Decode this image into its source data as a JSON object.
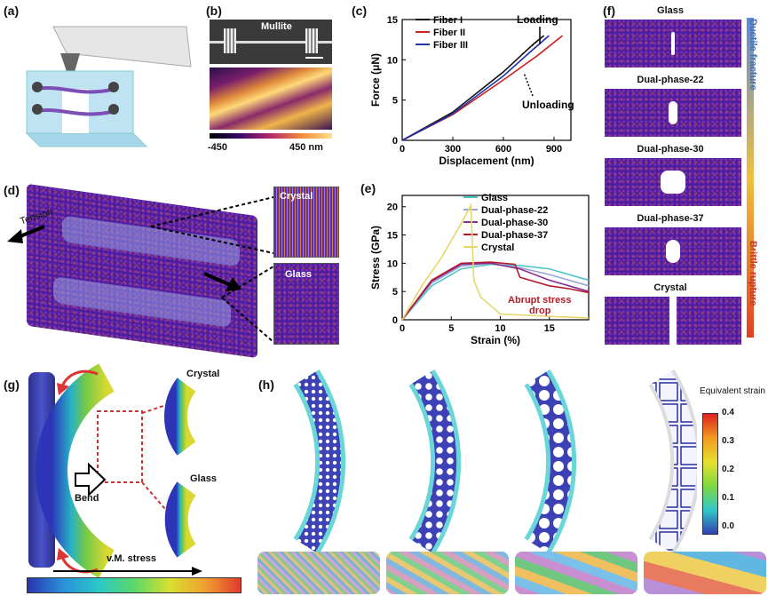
{
  "labels": {
    "a": "(a)",
    "b": "(b)",
    "c": "(c)",
    "d": "(d)",
    "e": "(e)",
    "f": "(f)",
    "g": "(g)",
    "h": "(h)"
  },
  "panel_b": {
    "sem_label": "Mullite",
    "colorbar_min": "-450",
    "colorbar_max": "450 nm"
  },
  "panel_c": {
    "chart_data": {
      "type": "line",
      "xlabel": "Displacement (nm)",
      "ylabel": "Force (μN)",
      "xlim": [
        0,
        1000
      ],
      "ylim": [
        0,
        15
      ],
      "xticks": [
        0,
        300,
        600,
        900
      ],
      "yticks": [
        0,
        5,
        10,
        15
      ],
      "series": [
        {
          "name": "Fiber I",
          "color": "#111111",
          "x": [
            0,
            300,
            600,
            780,
            840
          ],
          "y": [
            0,
            3.5,
            8.5,
            12,
            13
          ],
          "unload_x": [
            840,
            700
          ],
          "unload_y": [
            13,
            10.5
          ]
        },
        {
          "name": "Fiber II",
          "color": "#cc2222",
          "x": [
            0,
            300,
            600,
            800,
            950
          ],
          "y": [
            0,
            3.2,
            7.5,
            10.5,
            13
          ],
          "unload_x": [
            950,
            820
          ],
          "unload_y": [
            13,
            10.8
          ]
        },
        {
          "name": "Fiber III",
          "color": "#2233aa",
          "x": [
            0,
            300,
            600,
            760,
            870
          ],
          "y": [
            0,
            3.3,
            8,
            11,
            13
          ],
          "unload_x": [
            870,
            740
          ],
          "unload_y": [
            13,
            10.6
          ]
        }
      ],
      "annotations": [
        "Loading",
        "Unloading"
      ]
    }
  },
  "panel_d": {
    "tension": "Tension",
    "crystal": "Crystal",
    "glass": "Glass"
  },
  "panel_e": {
    "chart_data": {
      "type": "line",
      "xlabel": "Strain (%)",
      "ylabel": "Stress (GPa)",
      "xlim": [
        0,
        19
      ],
      "ylim": [
        0,
        22
      ],
      "xticks": [
        0,
        5,
        10,
        15
      ],
      "yticks": [
        0,
        5,
        10,
        15,
        20
      ],
      "series": [
        {
          "name": "Glass",
          "color": "#4fc4c8",
          "x": [
            0,
            3,
            6,
            9,
            12,
            15,
            17,
            19
          ],
          "y": [
            0,
            6,
            9,
            9.8,
            9.6,
            9,
            8,
            7
          ]
        },
        {
          "name": "Dual-phase-22",
          "color": "#9aa6d6",
          "x": [
            0,
            3,
            6,
            9,
            12,
            15,
            17,
            19
          ],
          "y": [
            0,
            6.5,
            9.5,
            10,
            9.2,
            8,
            7,
            6
          ]
        },
        {
          "name": "Dual-phase-30",
          "color": "#8a2d8f",
          "x": [
            0,
            3,
            6,
            9,
            12,
            15,
            17,
            19
          ],
          "y": [
            0,
            6.8,
            9.8,
            10,
            9,
            7,
            6,
            5
          ]
        },
        {
          "name": "Dual-phase-37",
          "color": "#b31c2a",
          "x": [
            0,
            3,
            6,
            9,
            11.5,
            12,
            15,
            17,
            19
          ],
          "y": [
            0,
            7,
            10,
            10.2,
            9.8,
            7.5,
            6,
            5.5,
            4.8
          ]
        },
        {
          "name": "Crystal",
          "color": "#e8d66a",
          "x": [
            0,
            2,
            4,
            6,
            7,
            7.3,
            8,
            10,
            19
          ],
          "y": [
            0,
            6,
            11,
            17,
            20.2,
            7,
            4,
            1,
            0.3
          ]
        }
      ],
      "annotation": "Abrupt stress drop"
    }
  },
  "panel_f": {
    "items": [
      "Glass",
      "Dual-phase-22",
      "Dual-phase-30",
      "Dual-phase-37",
      "Crystal"
    ],
    "top_label": "Ductile fracture",
    "bottom_label": "Brittle rupture"
  },
  "panel_g": {
    "bend": "Bend",
    "crystal": "Crystal",
    "glass": "Glass",
    "stress": "v.M. stress"
  },
  "panel_h": {
    "colorbar_title": "Equivalent strain",
    "ticks": [
      "0.4",
      "0.3",
      "0.2",
      "0.1",
      "0.0"
    ]
  }
}
